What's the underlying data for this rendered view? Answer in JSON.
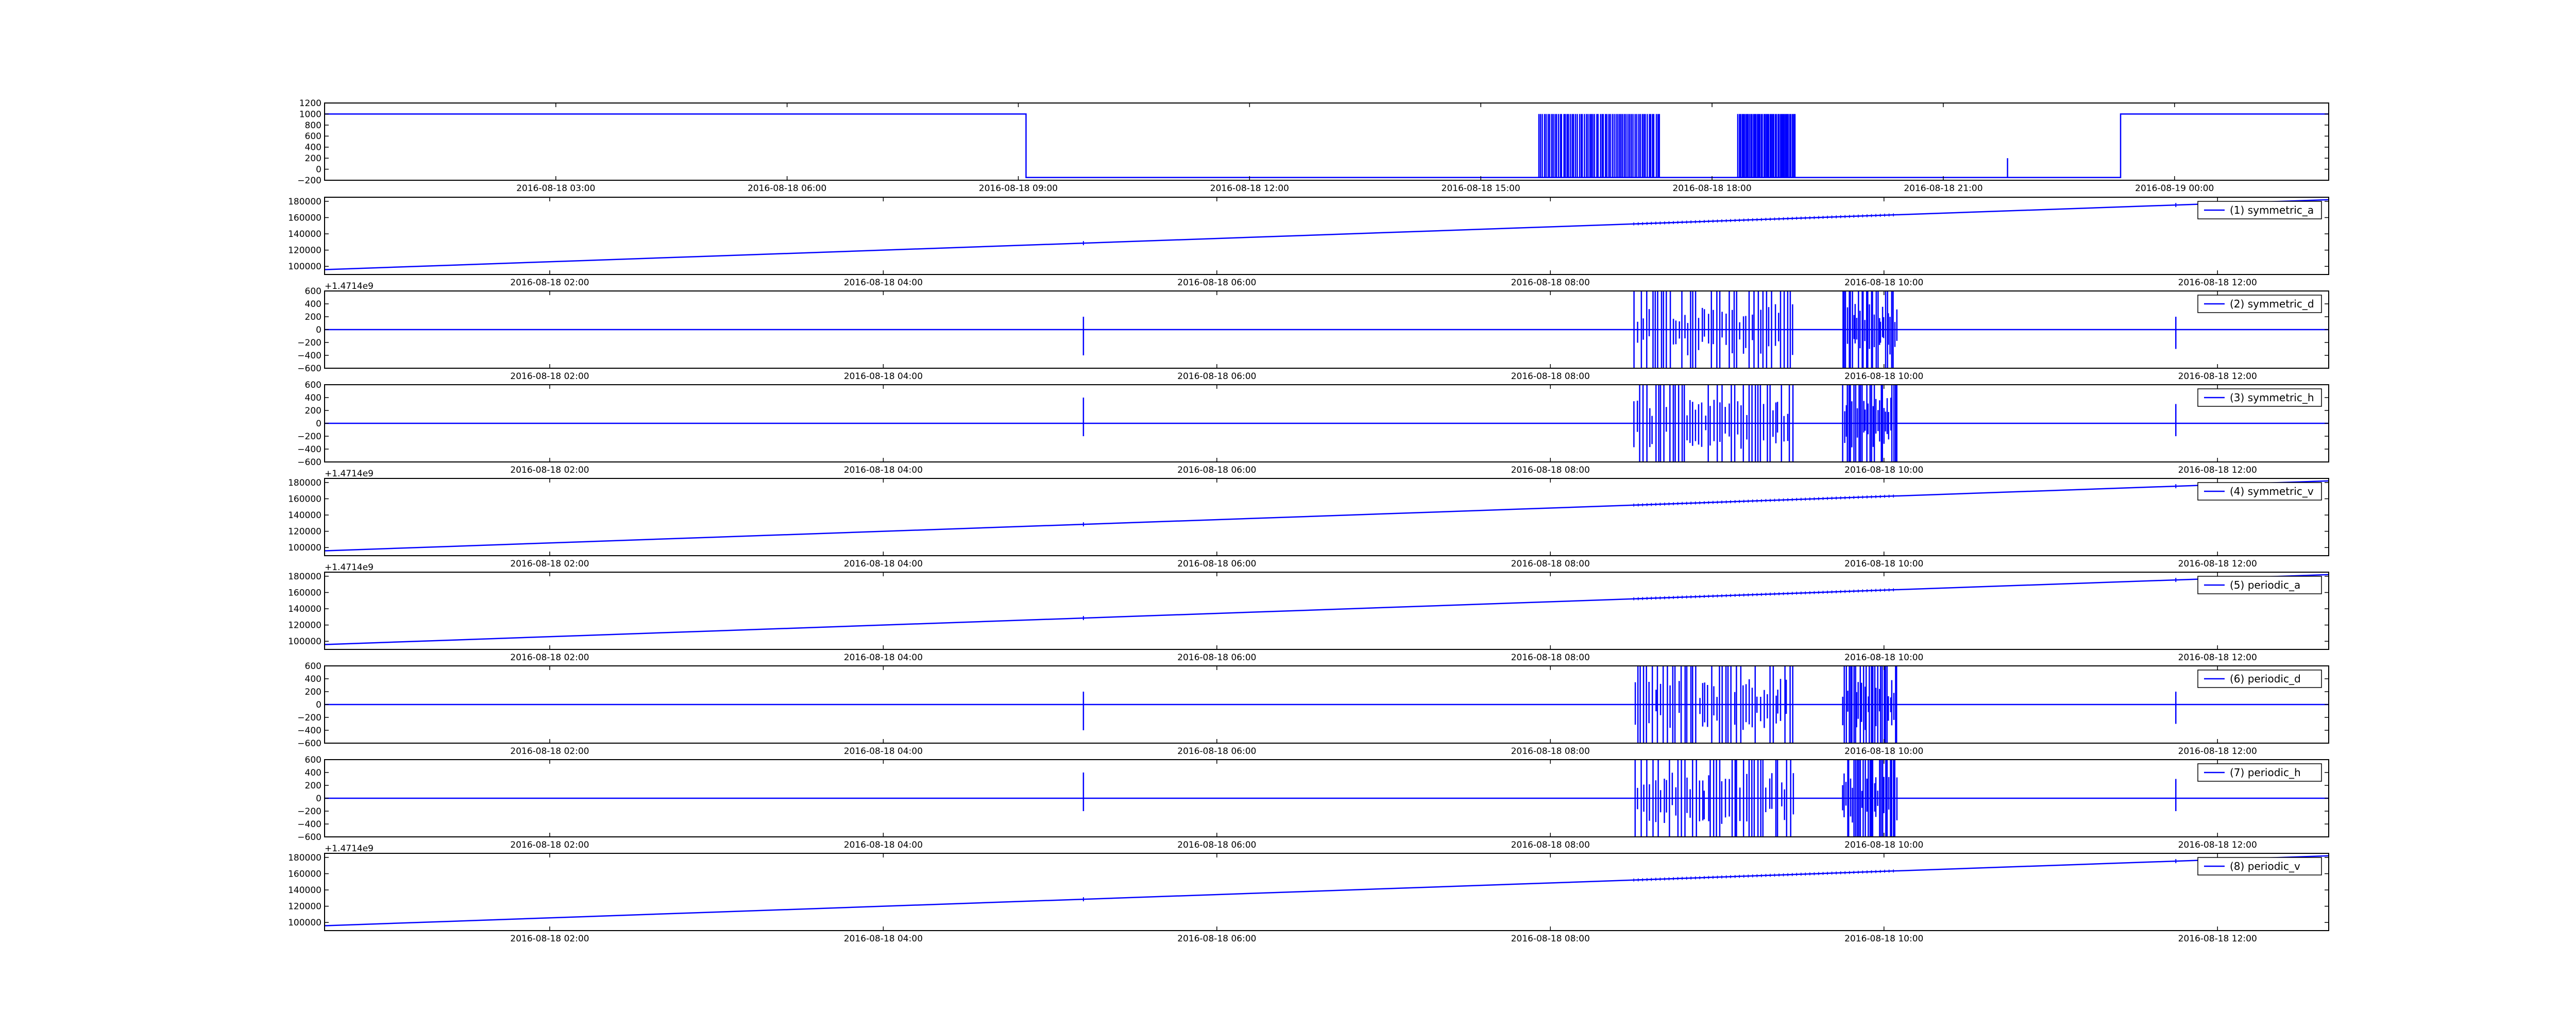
{
  "figure": {
    "background": "#ffffff",
    "line_color": "#0000ff",
    "frame_color": "#000000"
  },
  "chart_data": [
    {
      "type": "line",
      "x_scale": "time",
      "xlim": [
        "2016-08-18 00:00",
        "2016-08-19 02:00"
      ],
      "ylim": [
        -200,
        1200
      ],
      "y_ticks": [
        -200,
        0,
        200,
        400,
        600,
        800,
        1000,
        1200
      ],
      "y_tick_labels": [
        "−200",
        "0",
        "200",
        "400",
        "600",
        "800",
        "1000",
        "1200"
      ],
      "x_ticks": [
        "2016-08-18 03:00",
        "2016-08-18 06:00",
        "2016-08-18 09:00",
        "2016-08-18 12:00",
        "2016-08-18 15:00",
        "2016-08-18 18:00",
        "2016-08-18 21:00",
        "2016-08-19 00:00"
      ],
      "x_tick_labels": [
        "2016-08-18 03:00",
        "2016-08-18 06:00",
        "2016-08-18 09:00",
        "2016-08-18 12:00",
        "2016-08-18 15:00",
        "2016-08-18 18:00",
        "2016-08-18 21:00",
        "2016-08-19 00:00"
      ],
      "offset_label": "",
      "legend": "",
      "grid": false,
      "signal": {
        "kind": "square",
        "high": 1000,
        "low": -150,
        "high_segments": [
          [
            "2016-08-18 00:00",
            "2016-08-18 09:06"
          ],
          [
            "2016-08-18 23:18",
            "2016-08-19 02:00"
          ]
        ],
        "burst_windows": [
          [
            "2016-08-18 15:45",
            "2016-08-18 17:20"
          ],
          [
            "2016-08-18 18:20",
            "2016-08-18 19:05"
          ]
        ],
        "spikes": [
          {
            "x": "2016-08-18 21:50",
            "y": 200
          }
        ]
      }
    },
    {
      "type": "line",
      "x_scale": "time",
      "xlim": [
        "2016-08-18 00:39",
        "2016-08-18 12:40"
      ],
      "ylim": [
        90000,
        185000
      ],
      "y_ticks": [
        100000,
        120000,
        140000,
        160000,
        180000
      ],
      "y_tick_labels": [
        "100000",
        "120000",
        "140000",
        "160000",
        "180000"
      ],
      "x_ticks": [
        "2016-08-18 02:00",
        "2016-08-18 04:00",
        "2016-08-18 06:00",
        "2016-08-18 08:00",
        "2016-08-18 10:00",
        "2016-08-18 12:00"
      ],
      "x_tick_labels": [
        "2016-08-18 02:00",
        "2016-08-18 04:00",
        "2016-08-18 06:00",
        "2016-08-18 08:00",
        "2016-08-18 10:00",
        "2016-08-18 12:00"
      ],
      "offset_label": "+1.4714e9",
      "legend": "(1) symmetric_a",
      "legend_position": "top-right",
      "grid": false,
      "signal": {
        "kind": "ramp",
        "points": [
          [
            "2016-08-18 00:39",
            96000
          ],
          [
            "2016-08-18 12:40",
            182000
          ]
        ],
        "noise_windows": [
          [
            "2016-08-18 08:30",
            "2016-08-18 10:05"
          ]
        ]
      }
    },
    {
      "type": "line",
      "x_scale": "time",
      "xlim": [
        "2016-08-18 00:39",
        "2016-08-18 12:40"
      ],
      "ylim": [
        -600,
        600
      ],
      "y_ticks": [
        -600,
        -400,
        -200,
        0,
        200,
        400,
        600
      ],
      "y_tick_labels": [
        "−600",
        "−400",
        "−200",
        "0",
        "200",
        "400",
        "600"
      ],
      "x_ticks": [
        "2016-08-18 02:00",
        "2016-08-18 04:00",
        "2016-08-18 06:00",
        "2016-08-18 08:00",
        "2016-08-18 10:00",
        "2016-08-18 12:00"
      ],
      "x_tick_labels": [
        "2016-08-18 02:00",
        "2016-08-18 04:00",
        "2016-08-18 06:00",
        "2016-08-18 08:00",
        "2016-08-18 10:00",
        "2016-08-18 12:00"
      ],
      "offset_label": "",
      "legend": "(2) symmetric_d",
      "legend_position": "top-right",
      "grid": false,
      "signal": {
        "kind": "spikes",
        "baseline": 0,
        "burst_windows": [
          [
            "2016-08-18 08:30",
            "2016-08-18 09:28"
          ],
          [
            "2016-08-18 09:45",
            "2016-08-18 10:05"
          ]
        ],
        "spikes": [
          {
            "x": "2016-08-18 05:12",
            "y_max": 200,
            "y_min": -400
          },
          {
            "x": "2016-08-18 11:45",
            "y_max": 200,
            "y_min": -300
          }
        ]
      }
    },
    {
      "type": "line",
      "x_scale": "time",
      "xlim": [
        "2016-08-18 00:39",
        "2016-08-18 12:40"
      ],
      "ylim": [
        -600,
        600
      ],
      "y_ticks": [
        -600,
        -400,
        -200,
        0,
        200,
        400,
        600
      ],
      "y_tick_labels": [
        "−600",
        "−400",
        "−200",
        "0",
        "200",
        "400",
        "600"
      ],
      "x_ticks": [
        "2016-08-18 02:00",
        "2016-08-18 04:00",
        "2016-08-18 06:00",
        "2016-08-18 08:00",
        "2016-08-18 10:00",
        "2016-08-18 12:00"
      ],
      "x_tick_labels": [
        "2016-08-18 02:00",
        "2016-08-18 04:00",
        "2016-08-18 06:00",
        "2016-08-18 08:00",
        "2016-08-18 10:00",
        "2016-08-18 12:00"
      ],
      "offset_label": "+1.4714e9",
      "legend": "(3) symmetric_h",
      "legend_position": "top-right",
      "grid": false,
      "signal": {
        "kind": "spikes",
        "baseline": 0,
        "burst_windows": [
          [
            "2016-08-18 08:30",
            "2016-08-18 09:28"
          ],
          [
            "2016-08-18 09:45",
            "2016-08-18 10:05"
          ]
        ],
        "spikes": [
          {
            "x": "2016-08-18 05:12",
            "y_max": 400,
            "y_min": -200
          },
          {
            "x": "2016-08-18 11:45",
            "y_max": 300,
            "y_min": -200
          }
        ]
      }
    },
    {
      "type": "line",
      "x_scale": "time",
      "xlim": [
        "2016-08-18 00:39",
        "2016-08-18 12:40"
      ],
      "ylim": [
        90000,
        185000
      ],
      "y_ticks": [
        100000,
        120000,
        140000,
        160000,
        180000
      ],
      "y_tick_labels": [
        "100000",
        "120000",
        "140000",
        "160000",
        "180000"
      ],
      "x_ticks": [
        "2016-08-18 02:00",
        "2016-08-18 04:00",
        "2016-08-18 06:00",
        "2016-08-18 08:00",
        "2016-08-18 10:00",
        "2016-08-18 12:00"
      ],
      "x_tick_labels": [
        "2016-08-18 02:00",
        "2016-08-18 04:00",
        "2016-08-18 06:00",
        "2016-08-18 08:00",
        "2016-08-18 10:00",
        "2016-08-18 12:00"
      ],
      "offset_label": "+1.4714e9",
      "legend": "(4) symmetric_v",
      "legend_position": "top-right",
      "grid": false,
      "signal": {
        "kind": "ramp",
        "points": [
          [
            "2016-08-18 00:39",
            96000
          ],
          [
            "2016-08-18 12:40",
            182000
          ]
        ],
        "noise_windows": [
          [
            "2016-08-18 08:30",
            "2016-08-18 10:05"
          ]
        ]
      }
    },
    {
      "type": "line",
      "x_scale": "time",
      "xlim": [
        "2016-08-18 00:39",
        "2016-08-18 12:40"
      ],
      "ylim": [
        90000,
        185000
      ],
      "y_ticks": [
        100000,
        120000,
        140000,
        160000,
        180000
      ],
      "y_tick_labels": [
        "100000",
        "120000",
        "140000",
        "160000",
        "180000"
      ],
      "x_ticks": [
        "2016-08-18 02:00",
        "2016-08-18 04:00",
        "2016-08-18 06:00",
        "2016-08-18 08:00",
        "2016-08-18 10:00",
        "2016-08-18 12:00"
      ],
      "x_tick_labels": [
        "2016-08-18 02:00",
        "2016-08-18 04:00",
        "2016-08-18 06:00",
        "2016-08-18 08:00",
        "2016-08-18 10:00",
        "2016-08-18 12:00"
      ],
      "offset_label": "",
      "legend": "(5) periodic_a",
      "legend_position": "top-right",
      "grid": false,
      "signal": {
        "kind": "ramp",
        "points": [
          [
            "2016-08-18 00:39",
            96000
          ],
          [
            "2016-08-18 12:40",
            182000
          ]
        ],
        "noise_windows": [
          [
            "2016-08-18 08:30",
            "2016-08-18 10:05"
          ]
        ]
      }
    },
    {
      "type": "line",
      "x_scale": "time",
      "xlim": [
        "2016-08-18 00:39",
        "2016-08-18 12:40"
      ],
      "ylim": [
        -600,
        600
      ],
      "y_ticks": [
        -600,
        -400,
        -200,
        0,
        200,
        400,
        600
      ],
      "y_tick_labels": [
        "−600",
        "−400",
        "−200",
        "0",
        "200",
        "400",
        "600"
      ],
      "x_ticks": [
        "2016-08-18 02:00",
        "2016-08-18 04:00",
        "2016-08-18 06:00",
        "2016-08-18 08:00",
        "2016-08-18 10:00",
        "2016-08-18 12:00"
      ],
      "x_tick_labels": [
        "2016-08-18 02:00",
        "2016-08-18 04:00",
        "2016-08-18 06:00",
        "2016-08-18 08:00",
        "2016-08-18 10:00",
        "2016-08-18 12:00"
      ],
      "offset_label": "",
      "legend": "(6) periodic_d",
      "legend_position": "top-right",
      "grid": false,
      "signal": {
        "kind": "spikes",
        "baseline": 0,
        "burst_windows": [
          [
            "2016-08-18 08:30",
            "2016-08-18 09:28"
          ],
          [
            "2016-08-18 09:45",
            "2016-08-18 10:05"
          ]
        ],
        "spikes": [
          {
            "x": "2016-08-18 05:12",
            "y_max": 200,
            "y_min": -400
          },
          {
            "x": "2016-08-18 11:45",
            "y_max": 200,
            "y_min": -300
          }
        ]
      }
    },
    {
      "type": "line",
      "x_scale": "time",
      "xlim": [
        "2016-08-18 00:39",
        "2016-08-18 12:40"
      ],
      "ylim": [
        -600,
        600
      ],
      "y_ticks": [
        -600,
        -400,
        -200,
        0,
        200,
        400,
        600
      ],
      "y_tick_labels": [
        "−600",
        "−400",
        "−200",
        "0",
        "200",
        "400",
        "600"
      ],
      "x_ticks": [
        "2016-08-18 02:00",
        "2016-08-18 04:00",
        "2016-08-18 06:00",
        "2016-08-18 08:00",
        "2016-08-18 10:00",
        "2016-08-18 12:00"
      ],
      "x_tick_labels": [
        "2016-08-18 02:00",
        "2016-08-18 04:00",
        "2016-08-18 06:00",
        "2016-08-18 08:00",
        "2016-08-18 10:00",
        "2016-08-18 12:00"
      ],
      "offset_label": "+1.4714e9",
      "legend": "(7) periodic_h",
      "legend_position": "top-right",
      "grid": false,
      "signal": {
        "kind": "spikes",
        "baseline": 0,
        "burst_windows": [
          [
            "2016-08-18 08:30",
            "2016-08-18 09:28"
          ],
          [
            "2016-08-18 09:45",
            "2016-08-18 10:05"
          ]
        ],
        "spikes": [
          {
            "x": "2016-08-18 05:12",
            "y_max": 400,
            "y_min": -200
          },
          {
            "x": "2016-08-18 11:45",
            "y_max": 300,
            "y_min": -200
          }
        ]
      }
    },
    {
      "type": "line",
      "x_scale": "time",
      "xlim": [
        "2016-08-18 00:39",
        "2016-08-18 12:40"
      ],
      "ylim": [
        90000,
        185000
      ],
      "y_ticks": [
        100000,
        120000,
        140000,
        160000,
        180000
      ],
      "y_tick_labels": [
        "100000",
        "120000",
        "140000",
        "160000",
        "180000"
      ],
      "x_ticks": [
        "2016-08-18 02:00",
        "2016-08-18 04:00",
        "2016-08-18 06:00",
        "2016-08-18 08:00",
        "2016-08-18 10:00",
        "2016-08-18 12:00"
      ],
      "x_tick_labels": [
        "2016-08-18 02:00",
        "2016-08-18 04:00",
        "2016-08-18 06:00",
        "2016-08-18 08:00",
        "2016-08-18 10:00",
        "2016-08-18 12:00"
      ],
      "offset_label": "",
      "legend": "(8) periodic_v",
      "legend_position": "top-right",
      "grid": false,
      "signal": {
        "kind": "ramp",
        "points": [
          [
            "2016-08-18 00:39",
            96000
          ],
          [
            "2016-08-18 12:40",
            182000
          ]
        ],
        "noise_windows": [
          [
            "2016-08-18 08:30",
            "2016-08-18 10:05"
          ]
        ]
      }
    }
  ]
}
